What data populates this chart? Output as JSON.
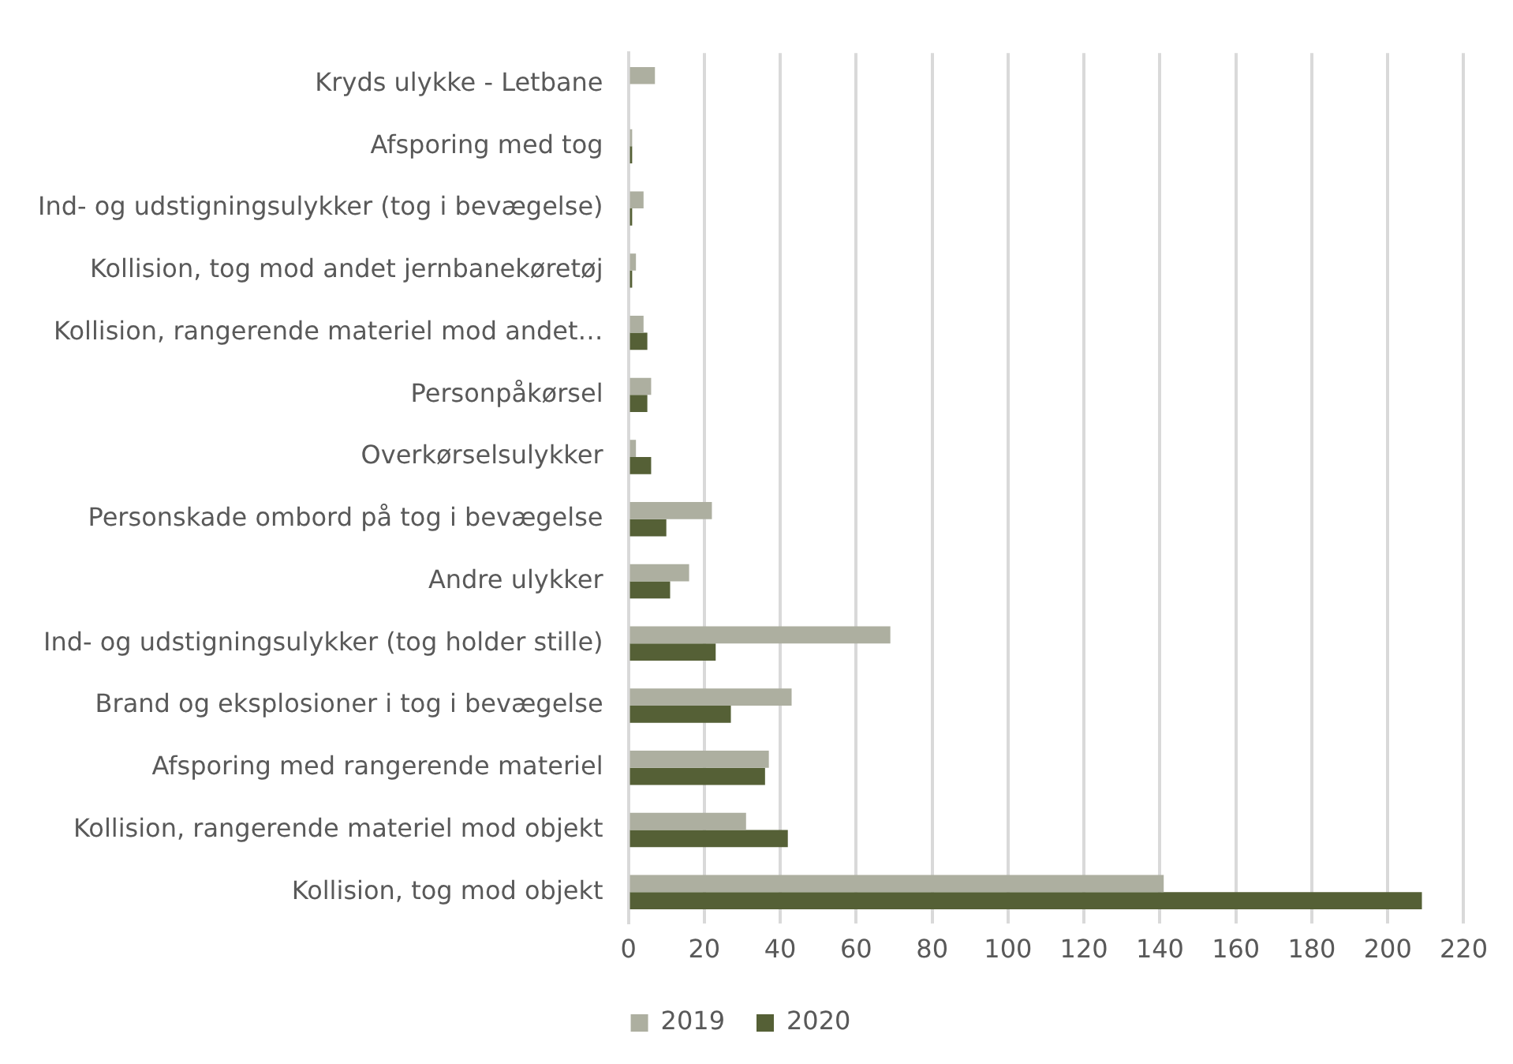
{
  "chart_data": {
    "type": "bar",
    "orientation": "horizontal",
    "categories": [
      "Kryds ulykke - Letbane",
      "Afsporing med tog",
      "Ind- og udstigningsulykker (tog i bevægelse)",
      "Kollision, tog mod andet jernbanekøretøj",
      "Kollision, rangerende materiel mod andet…",
      "Personpåkørsel",
      "Overkørselsulykker",
      "Personskade ombord på tog i bevægelse",
      "Andre ulykker",
      "Ind- og udstigningsulykker (tog holder stille)",
      "Brand og eksplosioner i tog i bevægelse",
      "Afsporing med rangerende materiel",
      "Kollision, rangerende materiel mod objekt",
      "Kollision, tog mod objekt"
    ],
    "series": [
      {
        "name": "2019",
        "color": "#adafa0",
        "values": [
          7,
          1,
          4,
          2,
          4,
          6,
          2,
          22,
          16,
          69,
          43,
          37,
          31,
          141
        ]
      },
      {
        "name": "2020",
        "color": "#556036",
        "values": [
          0,
          1,
          1,
          1,
          5,
          5,
          6,
          10,
          11,
          23,
          27,
          36,
          42,
          209
        ]
      }
    ],
    "xlim": [
      0,
      220
    ],
    "xticks": [
      0,
      20,
      40,
      60,
      80,
      100,
      120,
      140,
      160,
      180,
      200,
      220
    ],
    "grid": "x",
    "legend": "bottom"
  }
}
